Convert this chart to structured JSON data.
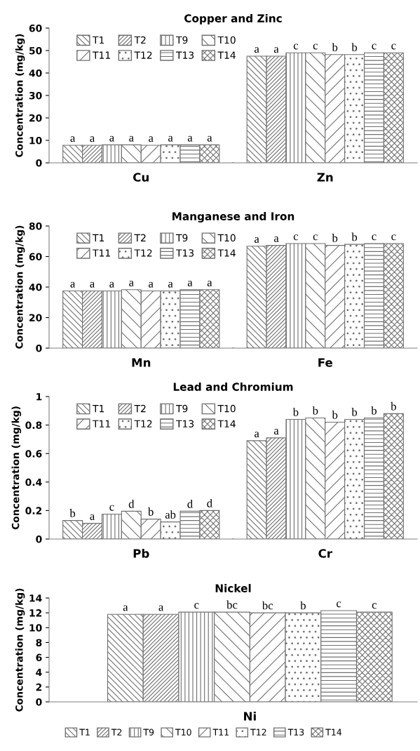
{
  "chart_data": [
    {
      "type": "bar",
      "title": "Copper and Zinc",
      "ylabel": "Concentration (mg/kg)",
      "categories": [
        "Cu",
        "Zn"
      ],
      "ylim": [
        0,
        60
      ],
      "yticks": [
        0,
        10,
        20,
        30,
        40,
        50,
        60
      ],
      "legend": "top left",
      "grid": false,
      "series": [
        {
          "name": "T1",
          "color": "#707070",
          "values": [
            7.8,
            47.5
          ],
          "value_labels": [
            "a",
            "a"
          ]
        },
        {
          "name": "T2",
          "color": "#707070",
          "values": [
            7.8,
            47.5
          ],
          "value_labels": [
            "a",
            "a"
          ]
        },
        {
          "name": "T9",
          "color": "#707070",
          "values": [
            8.0,
            49
          ],
          "value_labels": [
            "a",
            "c"
          ]
        },
        {
          "name": "T10",
          "color": "#707070",
          "values": [
            8.0,
            49
          ],
          "value_labels": [
            "a",
            "c"
          ]
        },
        {
          "name": "T11",
          "color": "#707070",
          "values": [
            7.8,
            48.2
          ],
          "value_labels": [
            "a",
            "b"
          ]
        },
        {
          "name": "T12",
          "color": "#707070",
          "values": [
            8.0,
            48.2
          ],
          "value_labels": [
            "a",
            "b"
          ]
        },
        {
          "name": "T13",
          "color": "#707070",
          "values": [
            8.0,
            49
          ],
          "value_labels": [
            "a",
            "c"
          ]
        },
        {
          "name": "T14",
          "color": "#707070",
          "values": [
            8.0,
            49
          ],
          "value_labels": [
            "a",
            "c"
          ]
        }
      ]
    },
    {
      "type": "bar",
      "title": "Manganese and Iron",
      "ylabel": "Concentration (mg/kg)",
      "categories": [
        "Mn",
        "Fe"
      ],
      "ylim": [
        0,
        80
      ],
      "yticks": [
        0,
        20,
        40,
        60,
        80
      ],
      "legend": "top left",
      "grid": false,
      "series": [
        {
          "name": "T1",
          "color": "#707070",
          "values": [
            37.5,
            66.8
          ],
          "value_labels": [
            "a",
            "a"
          ]
        },
        {
          "name": "T2",
          "color": "#707070",
          "values": [
            37.5,
            67.3
          ],
          "value_labels": [
            "a",
            "a"
          ]
        },
        {
          "name": "T9",
          "color": "#707070",
          "values": [
            37.5,
            68.5
          ],
          "value_labels": [
            "a",
            "c"
          ]
        },
        {
          "name": "T10",
          "color": "#707070",
          "values": [
            38.3,
            68.5
          ],
          "value_labels": [
            "a",
            "c"
          ]
        },
        {
          "name": "T11",
          "color": "#707070",
          "values": [
            37.5,
            67.3
          ],
          "value_labels": [
            "a",
            "b"
          ]
        },
        {
          "name": "T12",
          "color": "#707070",
          "values": [
            37.5,
            68.0
          ],
          "value_labels": [
            "a",
            "b"
          ]
        },
        {
          "name": "T13",
          "color": "#707070",
          "values": [
            38.3,
            68.5
          ],
          "value_labels": [
            "a",
            "c"
          ]
        },
        {
          "name": "T14",
          "color": "#707070",
          "values": [
            38.3,
            68.5
          ],
          "value_labels": [
            "a",
            "c"
          ]
        }
      ]
    },
    {
      "type": "bar",
      "title": "Lead and Chromium",
      "ylabel": "Concentration (mg/kg)",
      "categories": [
        "Pb",
        "Cr"
      ],
      "ylim": [
        0,
        1
      ],
      "yticks": [
        0,
        0.2,
        0.4,
        0.6,
        0.8,
        1
      ],
      "legend": "top left",
      "grid": false,
      "series": [
        {
          "name": "T1",
          "color": "#707070",
          "values": [
            0.13,
            0.69
          ],
          "value_labels": [
            "b",
            "a"
          ]
        },
        {
          "name": "T2",
          "color": "#707070",
          "values": [
            0.11,
            0.71
          ],
          "value_labels": [
            "a",
            "a"
          ]
        },
        {
          "name": "T9",
          "color": "#707070",
          "values": [
            0.175,
            0.84
          ],
          "value_labels": [
            "c",
            "b"
          ]
        },
        {
          "name": "T10",
          "color": "#707070",
          "values": [
            0.195,
            0.85
          ],
          "value_labels": [
            "d",
            "b"
          ]
        },
        {
          "name": "T11",
          "color": "#707070",
          "values": [
            0.14,
            0.82
          ],
          "value_labels": [
            "b",
            "b"
          ]
        },
        {
          "name": "T12",
          "color": "#707070",
          "values": [
            0.12,
            0.84
          ],
          "value_labels": [
            "ab",
            "b"
          ]
        },
        {
          "name": "T13",
          "color": "#707070",
          "values": [
            0.195,
            0.85
          ],
          "value_labels": [
            "d",
            "b"
          ]
        },
        {
          "name": "T14",
          "color": "#707070",
          "values": [
            0.2,
            0.88
          ],
          "value_labels": [
            "d",
            "b"
          ]
        }
      ]
    },
    {
      "type": "bar",
      "title": "Nickel",
      "ylabel": "Concentration (mg/kg)",
      "categories": [
        "Ni"
      ],
      "ylim": [
        0,
        14
      ],
      "yticks": [
        0,
        2,
        4,
        6,
        8,
        10,
        12,
        14
      ],
      "legend": "bottom",
      "grid": false,
      "series": [
        {
          "name": "T1",
          "color": "#707070",
          "values": [
            11.8
          ],
          "value_labels": [
            "a"
          ]
        },
        {
          "name": "T2",
          "color": "#707070",
          "values": [
            11.8
          ],
          "value_labels": [
            "a"
          ]
        },
        {
          "name": "T9",
          "color": "#707070",
          "values": [
            12.1
          ],
          "value_labels": [
            "c"
          ]
        },
        {
          "name": "T10",
          "color": "#707070",
          "values": [
            12.1
          ],
          "value_labels": [
            "bc"
          ]
        },
        {
          "name": "T11",
          "color": "#707070",
          "values": [
            12.0
          ],
          "value_labels": [
            "bc"
          ]
        },
        {
          "name": "T12",
          "color": "#707070",
          "values": [
            12.0
          ],
          "value_labels": [
            "b"
          ]
        },
        {
          "name": "T13",
          "color": "#707070",
          "values": [
            12.3
          ],
          "value_labels": [
            "c"
          ]
        },
        {
          "name": "T14",
          "color": "#707070",
          "values": [
            12.1
          ],
          "value_labels": [
            "c"
          ]
        }
      ]
    }
  ]
}
